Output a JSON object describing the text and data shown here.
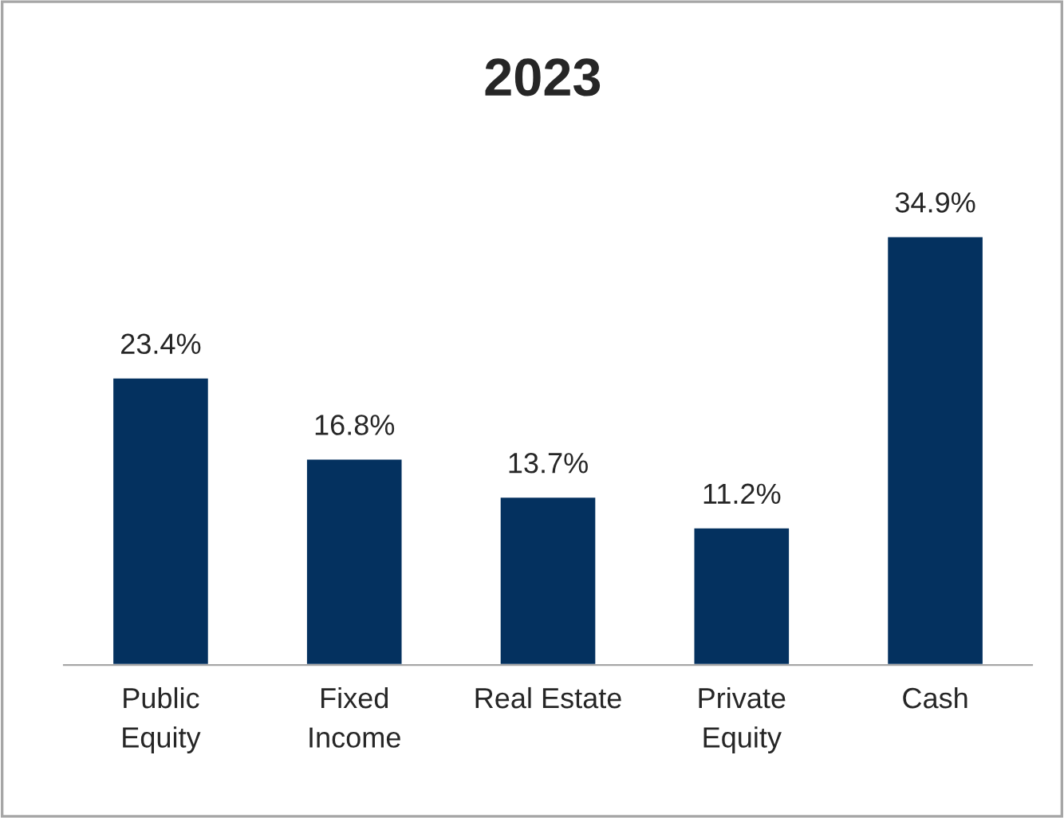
{
  "chart_data": {
    "type": "bar",
    "title": "2023",
    "categories": [
      "Public\nEquity",
      "Fixed\nIncome",
      "Real Estate",
      "Private\nEquity",
      "Cash"
    ],
    "values": [
      23.4,
      16.8,
      13.7,
      11.2,
      34.9
    ],
    "value_labels": [
      "23.4%",
      "16.8%",
      "13.7%",
      "11.2%",
      "34.9%"
    ],
    "color": "#04315f",
    "grid": false,
    "legend": false
  }
}
